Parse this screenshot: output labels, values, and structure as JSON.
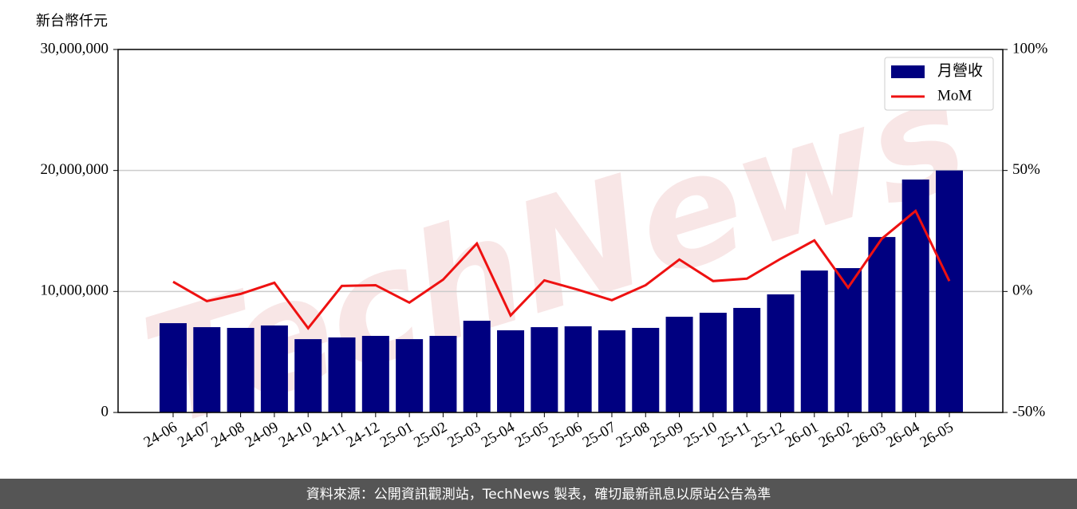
{
  "chart_data": {
    "type": "bar-line",
    "watermark": "TechNews",
    "y_label": "新台幣仟元",
    "footer": "資料來源：公開資訊觀測站，TechNews 製表，確切最新訊息以原站公告為準",
    "categories": [
      "24-06",
      "24-07",
      "24-08",
      "24-09",
      "24-10",
      "24-11",
      "24-12",
      "25-01",
      "25-02",
      "25-03",
      "25-04",
      "25-05",
      "25-06",
      "25-07",
      "25-08",
      "25-09",
      "25-10",
      "25-11",
      "25-12",
      "26-01",
      "26-02",
      "26-03",
      "26-04",
      "26-05"
    ],
    "series": [
      {
        "name": "月營收",
        "color": "#000080",
        "type": "bar",
        "values": [
          7380000,
          7050000,
          6990000,
          7190000,
          6060000,
          6200000,
          6330000,
          6060000,
          6330000,
          7580000,
          6790000,
          7050000,
          7120000,
          6790000,
          6990000,
          7910000,
          8240000,
          8640000,
          9760000,
          11730000,
          11930000,
          14500000,
          19250000,
          20000000
        ]
      },
      {
        "name": "MoM",
        "color": "#ee1111",
        "type": "line",
        "axis": "y2",
        "values": [
          4,
          -4,
          -1,
          3.6,
          -15.2,
          2.3,
          2.6,
          -4.6,
          4.9,
          19.8,
          -9.9,
          4.6,
          0.7,
          -3.6,
          2.6,
          13.2,
          4.3,
          5.3,
          13.5,
          21.1,
          1.6,
          21.8,
          33.3,
          4.3
        ]
      }
    ],
    "ylim": [
      0,
      30000000
    ],
    "yticks": [
      0,
      {
        "value": 10000000,
        "label": "10,000,000"
      },
      {
        "value": 20000000,
        "label": "20,000,000"
      },
      {
        "value": 30000000,
        "label": "30,000,000"
      }
    ],
    "y2lim": [
      -50,
      100
    ],
    "y2ticks": [
      {
        "value": -50,
        "label": "-50%"
      },
      {
        "value": 0,
        "label": "0%"
      },
      {
        "value": 50,
        "label": "50%"
      },
      {
        "value": 100,
        "label": "100%"
      }
    ],
    "grid": true,
    "legend": "upper right"
  }
}
